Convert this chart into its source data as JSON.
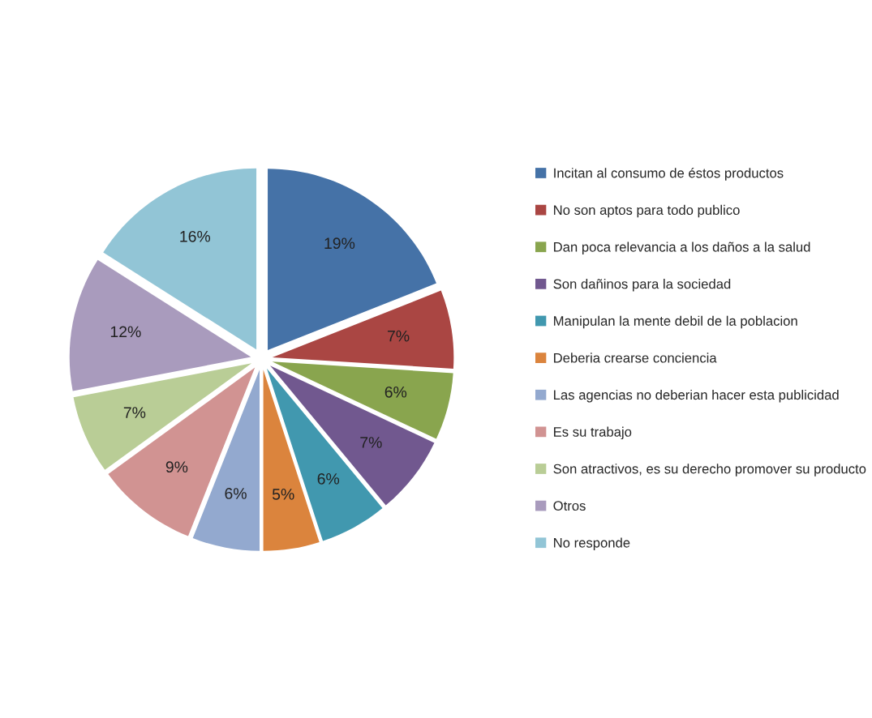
{
  "chart_data": {
    "type": "pie",
    "categories": [
      "Incitan al consumo de éstos productos",
      "No son aptos para todo publico",
      "Dan poca relevancia a los daños a la salud",
      "Son dañinos para la sociedad",
      "Manipulan la mente debil de la poblacion",
      "Deberia crearse conciencia",
      "Las agencias no deberian hacer esta publicidad",
      "Es su trabajo",
      "Son atractivos, es su derecho promover su producto",
      "Otros",
      "No responde"
    ],
    "values": [
      19,
      7,
      6,
      7,
      6,
      5,
      6,
      9,
      7,
      12,
      16
    ],
    "value_labels": [
      "19%",
      "7%",
      "6%",
      "7%",
      "6%",
      "5%",
      "6%",
      "9%",
      "7%",
      "12%",
      "16%"
    ],
    "colors": [
      "#4572a7",
      "#aa4643",
      "#89a54e",
      "#71588f",
      "#4198af",
      "#db843d",
      "#93a9cf",
      "#d19392",
      "#b9cd96",
      "#a99bbd",
      "#92c5d6"
    ],
    "legend": "right"
  }
}
